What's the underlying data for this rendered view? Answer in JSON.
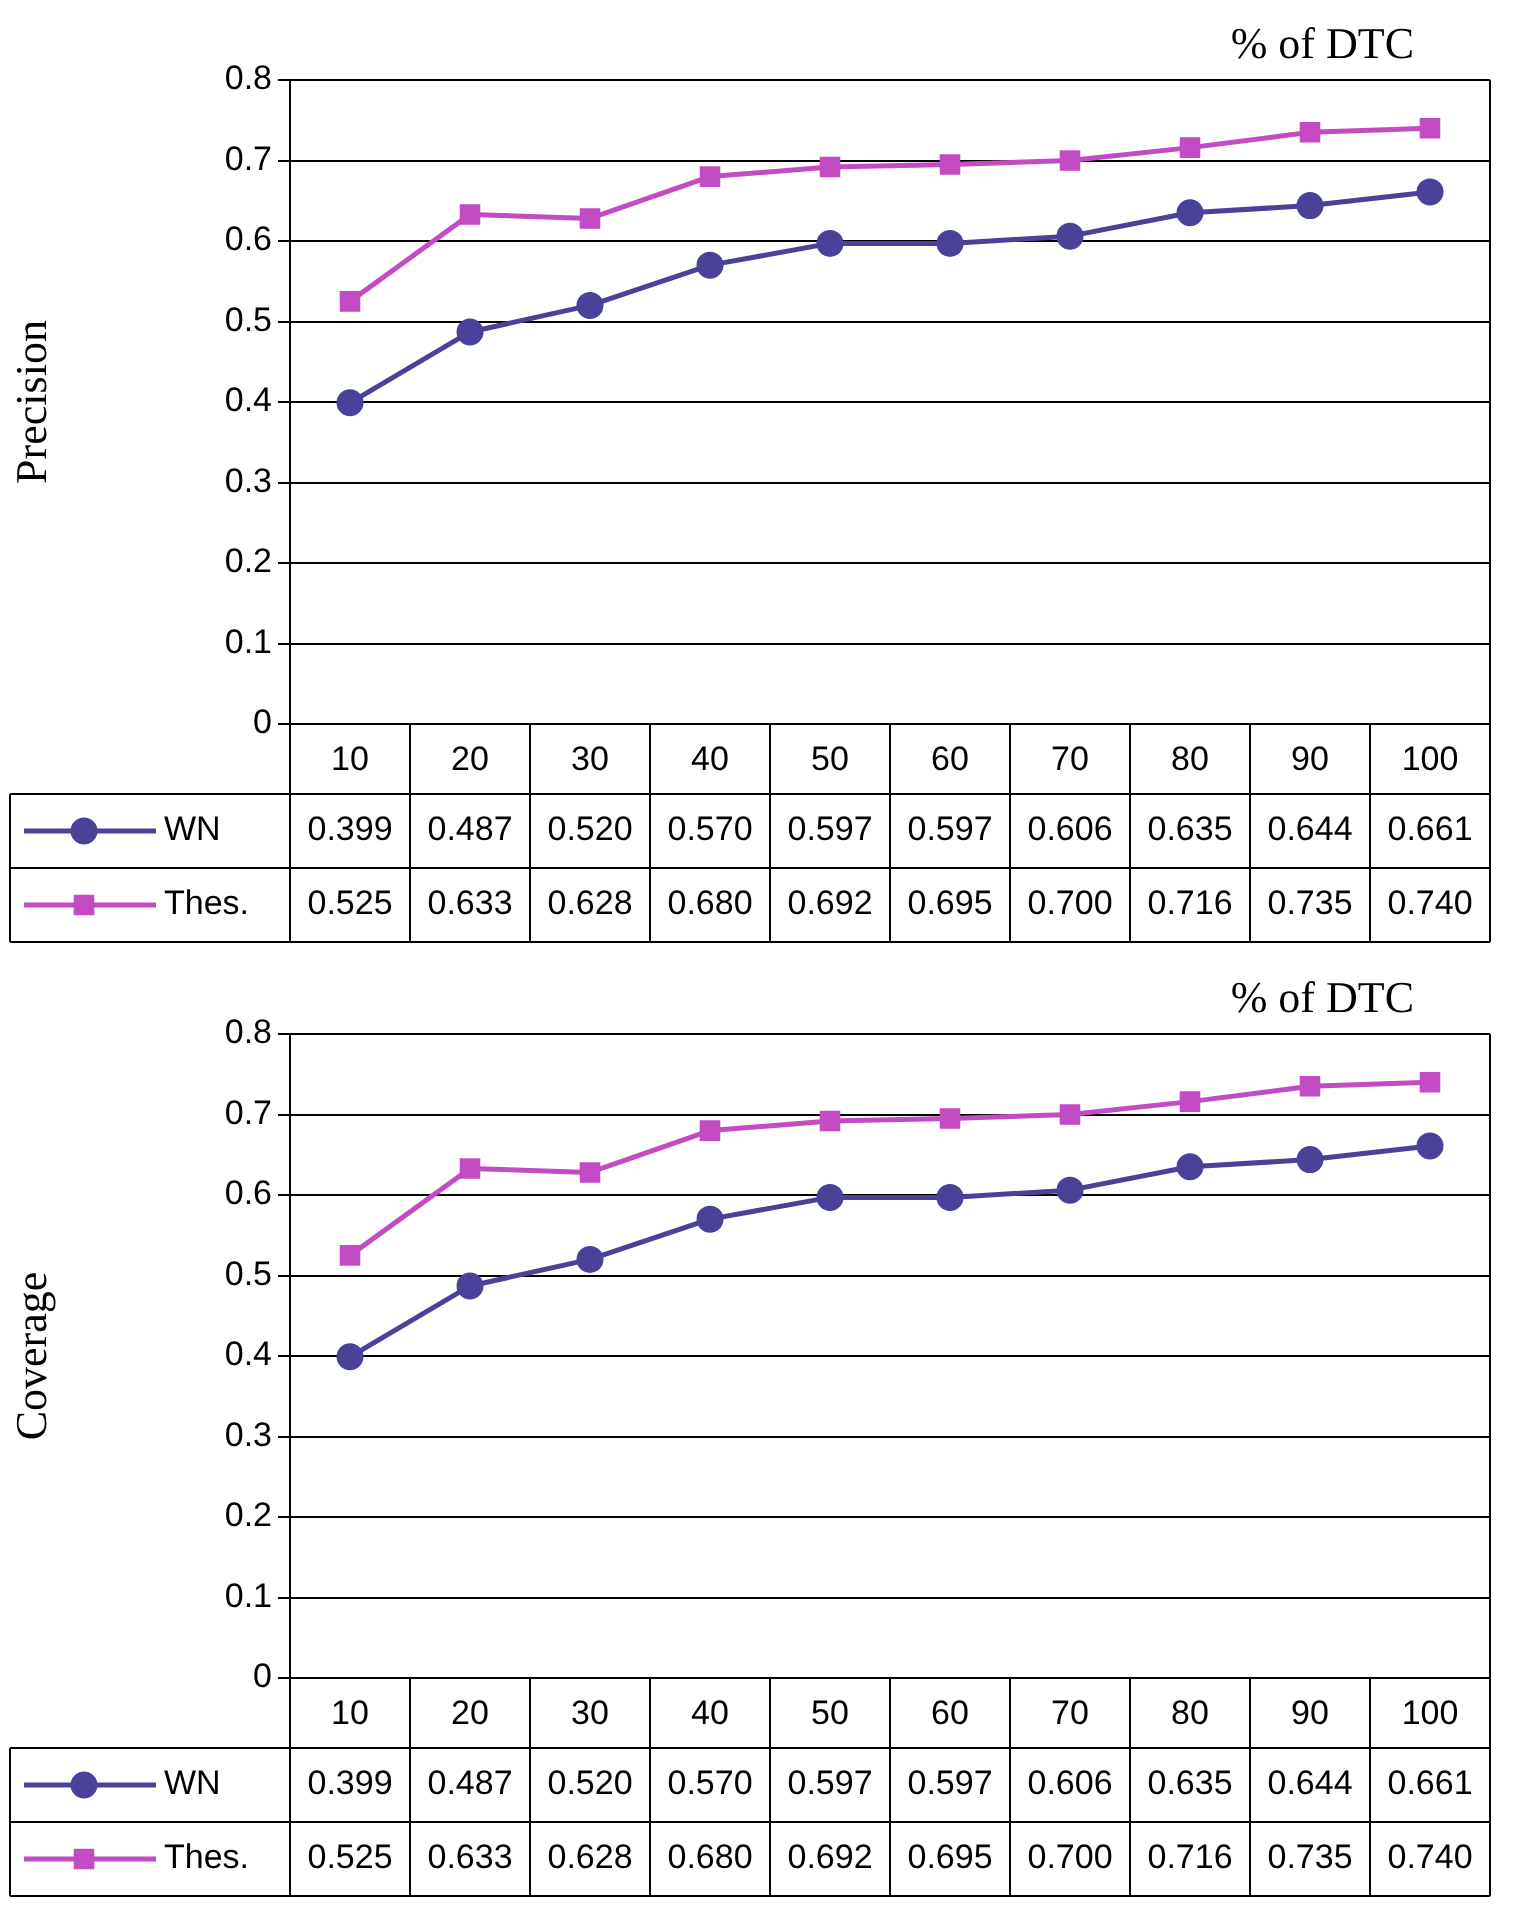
{
  "chart_data": [
    {
      "type": "line",
      "xlabel": "% of DTC",
      "ylabel": "Precision",
      "categories": [
        "10",
        "20",
        "30",
        "40",
        "50",
        "60",
        "70",
        "80",
        "90",
        "100"
      ],
      "ylim": [
        0,
        0.8
      ],
      "yticks": [
        0,
        0.1,
        0.2,
        0.3,
        0.4,
        0.5,
        0.6,
        0.7,
        0.8
      ],
      "grid": "y",
      "legend": "bottom",
      "series": [
        {
          "name": "WN",
          "color": "#4a4199",
          "marker": "circle",
          "values": [
            0.399,
            0.487,
            0.52,
            0.57,
            0.597,
            0.597,
            0.606,
            0.635,
            0.644,
            0.661
          ],
          "value_labels": [
            "0.399",
            "0.487",
            "0.520",
            "0.570",
            "0.597",
            "0.597",
            "0.606",
            "0.635",
            "0.644",
            "0.661"
          ]
        },
        {
          "name": "Thes.",
          "color": "#c34bc3",
          "marker": "square",
          "values": [
            0.525,
            0.633,
            0.628,
            0.68,
            0.692,
            0.695,
            0.7,
            0.716,
            0.735,
            0.74
          ],
          "value_labels": [
            "0.525",
            "0.633",
            "0.628",
            "0.680",
            "0.692",
            "0.695",
            "0.700",
            "0.716",
            "0.735",
            "0.740"
          ]
        }
      ]
    },
    {
      "type": "line",
      "xlabel": "% of DTC",
      "ylabel": "Coverage",
      "categories": [
        "10",
        "20",
        "30",
        "40",
        "50",
        "60",
        "70",
        "80",
        "90",
        "100"
      ],
      "ylim": [
        0,
        0.8
      ],
      "yticks": [
        0,
        0.1,
        0.2,
        0.3,
        0.4,
        0.5,
        0.6,
        0.7,
        0.8
      ],
      "grid": "y",
      "legend": "bottom",
      "series": [
        {
          "name": "WN",
          "color": "#4a4199",
          "marker": "circle",
          "values": [
            0.399,
            0.487,
            0.52,
            0.57,
            0.597,
            0.597,
            0.606,
            0.635,
            0.644,
            0.661
          ],
          "value_labels": [
            "0.399",
            "0.487",
            "0.520",
            "0.570",
            "0.597",
            "0.597",
            "0.606",
            "0.635",
            "0.644",
            "0.661"
          ]
        },
        {
          "name": "Thes.",
          "color": "#c34bc3",
          "marker": "square",
          "values": [
            0.525,
            0.633,
            0.628,
            0.68,
            0.692,
            0.695,
            0.7,
            0.716,
            0.735,
            0.74
          ],
          "value_labels": [
            "0.525",
            "0.633",
            "0.628",
            "0.680",
            "0.692",
            "0.695",
            "0.700",
            "0.716",
            "0.735",
            "0.740"
          ]
        }
      ]
    }
  ]
}
